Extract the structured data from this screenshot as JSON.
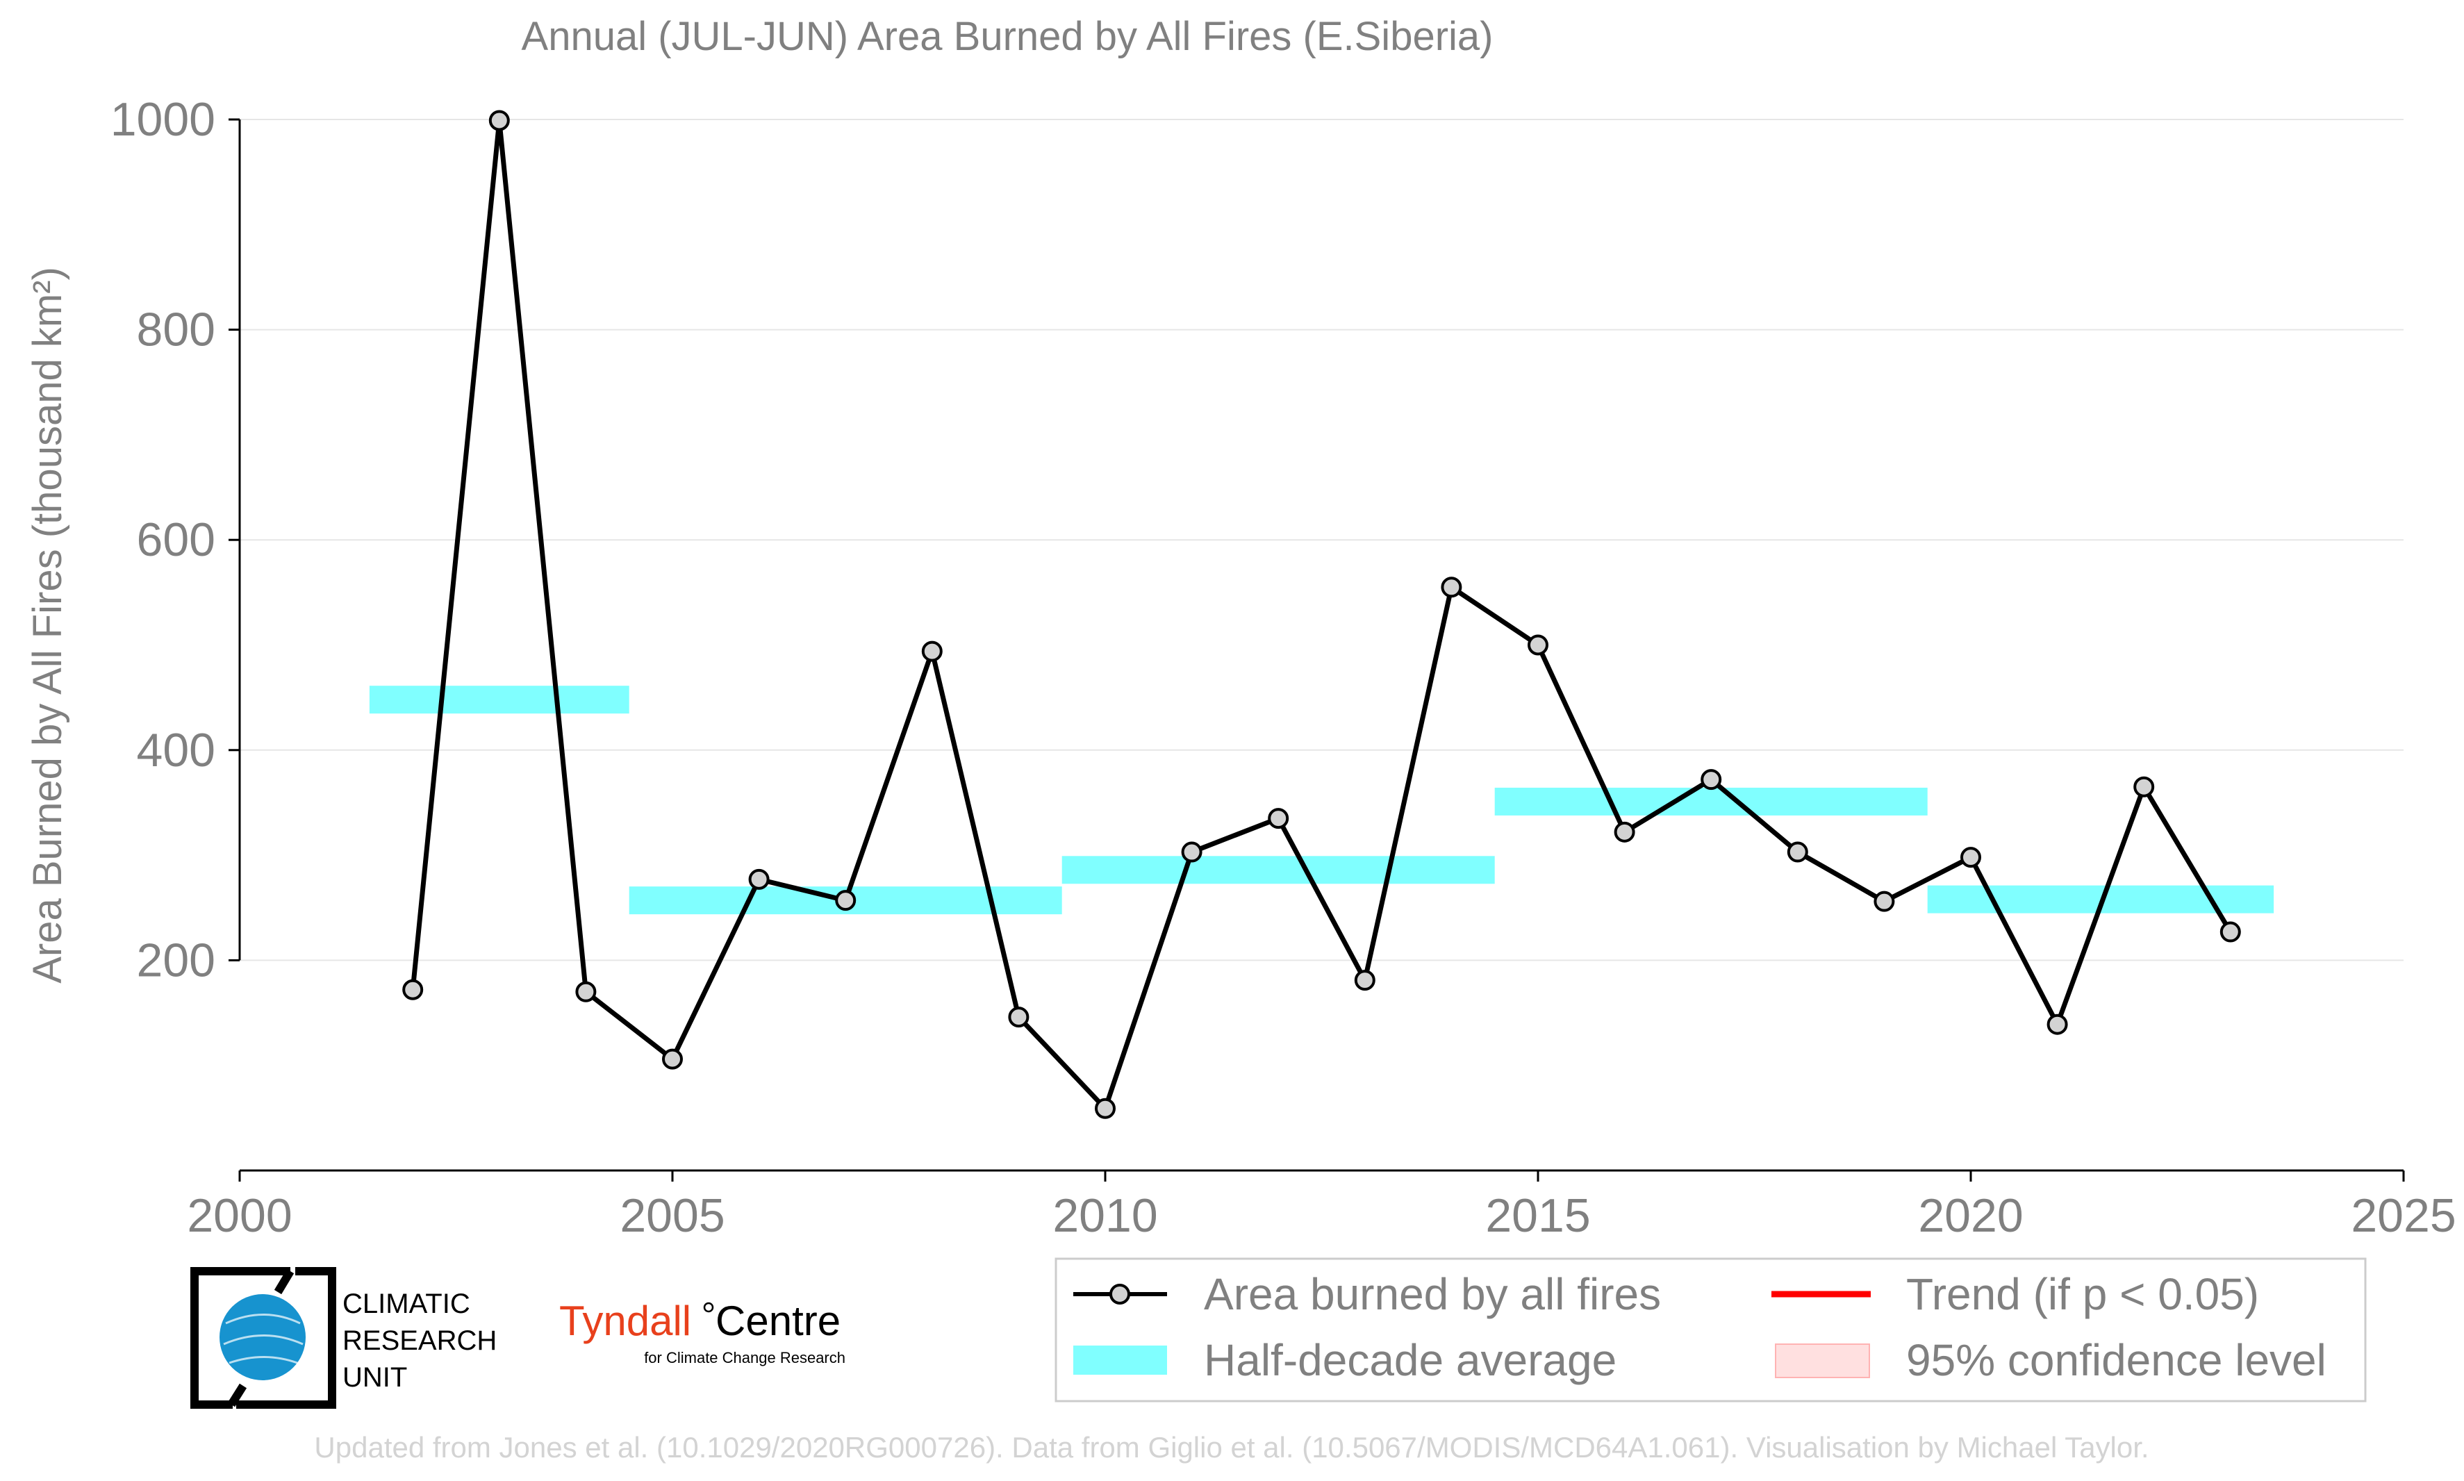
{
  "chart_data": {
    "type": "line",
    "title": "Annual (JUL-JUN) Area Burned by All Fires (E.Siberia)",
    "ylabel": "Area Burned by All Fires (thousand km²)",
    "xlabel": "",
    "xlim": [
      2000,
      2025
    ],
    "ylim": [
      0,
      1000
    ],
    "xticks": [
      2000,
      2005,
      2010,
      2015,
      2020,
      2025
    ],
    "yticks": [
      200,
      400,
      600,
      800,
      1000
    ],
    "grid": "horizontal",
    "legend_position": "bottom-right",
    "series": [
      {
        "name": "Area burned by all fires",
        "color": "#000000",
        "marker_color": "#d3d3d3",
        "x": [
          2002,
          2003,
          2004,
          2005,
          2006,
          2007,
          2008,
          2009,
          2010,
          2011,
          2012,
          2013,
          2014,
          2015,
          2016,
          2017,
          2018,
          2019,
          2020,
          2021,
          2022,
          2023
        ],
        "y": [
          172,
          999,
          170,
          106,
          277,
          257,
          494,
          146,
          59,
          303,
          335,
          181,
          555,
          500,
          322,
          372,
          303,
          256,
          298,
          139,
          365,
          227
        ]
      }
    ],
    "half_decade_averages": {
      "name": "Half-decade average",
      "color": "#80ffff",
      "segments": [
        {
          "x_start": 2001.5,
          "x_end": 2004.5,
          "y": 448
        },
        {
          "x_start": 2004.5,
          "x_end": 2009.5,
          "y": 257
        },
        {
          "x_start": 2009.5,
          "x_end": 2014.5,
          "y": 286
        },
        {
          "x_start": 2014.5,
          "x_end": 2019.5,
          "y": 351
        },
        {
          "x_start": 2019.5,
          "x_end": 2023.5,
          "y": 258
        }
      ]
    },
    "legend": [
      {
        "label": "Area burned by all fires",
        "kind": "line-marker",
        "color": "#000000"
      },
      {
        "label": "Trend (if p < 0.05)",
        "kind": "line",
        "color": "#ff0000"
      },
      {
        "label": "Half-decade average",
        "kind": "patch",
        "color": "#80ffff"
      },
      {
        "label": "95% confidence level",
        "kind": "patch",
        "color": "#ffe0e0"
      }
    ]
  },
  "logos": {
    "cru_lines": [
      "CLIMATIC",
      "RESEARCH",
      "UNIT"
    ],
    "tyndall_name": "Tyndall",
    "tyndall_centre": "Centre",
    "tyndall_sub": "for Climate Change Research"
  },
  "footer": "Updated from Jones et al. (10.1029/2020RG000726). Data from Giglio et al. (10.5067/MODIS/MCD64A1.061). Visualisation by Michael Taylor."
}
